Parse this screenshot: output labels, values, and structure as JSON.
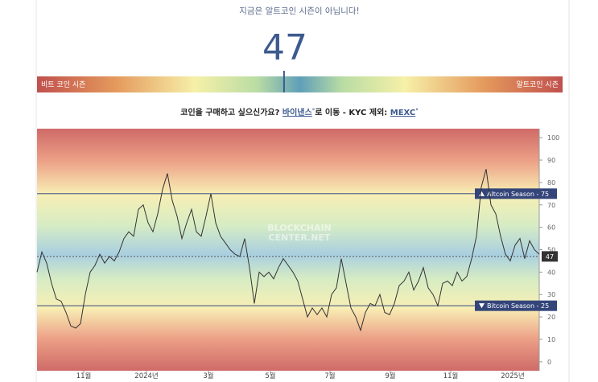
{
  "header": {
    "status": "지금은 알트코인 시즌이 아닙니다!",
    "index_value": 47,
    "bar_left": "비트 코인 시즌",
    "bar_right": "알트코인 시즌",
    "index_min": 0,
    "index_max": 100
  },
  "promo": {
    "text1": "코인을 구매하고 싶으신가요?",
    "link1": "바이낸스",
    "text2": "로 이동 - KYC 제외:",
    "link2": "MEXC",
    "link_mark": "°"
  },
  "chart_data": {
    "type": "line",
    "color": "#333333",
    "values": [
      40,
      49,
      44,
      35,
      28,
      27,
      22,
      16,
      15,
      17,
      30,
      40,
      43,
      48,
      44,
      47,
      45,
      49,
      55,
      58,
      56,
      68,
      70,
      62,
      58,
      66,
      77,
      84,
      72,
      65,
      55,
      62,
      68,
      58,
      56,
      65,
      75,
      62,
      56,
      53,
      50,
      48,
      47,
      55,
      42,
      26,
      40,
      38,
      40,
      37,
      42,
      46,
      43,
      40,
      36,
      28,
      20,
      24,
      21,
      24,
      20,
      30,
      33,
      46,
      35,
      24,
      20,
      14,
      22,
      26,
      25,
      30,
      22,
      21,
      26,
      34,
      36,
      40,
      32,
      36,
      42,
      33,
      30,
      25,
      35,
      36,
      34,
      40,
      36,
      38,
      46,
      56,
      78,
      86,
      70,
      66,
      56,
      48,
      45,
      52,
      55,
      46,
      54,
      50,
      48
    ],
    "xlim": [
      0,
      104
    ],
    "xticks": [
      {
        "value": 9.67,
        "label": "11월"
      },
      {
        "value": 22.67,
        "label": "2024년"
      },
      {
        "value": 35.5,
        "label": "3월"
      },
      {
        "value": 48.33,
        "label": "5월"
      },
      {
        "value": 60.67,
        "label": "7월"
      },
      {
        "value": 73.17,
        "label": "9월"
      },
      {
        "value": 85.67,
        "label": "11월"
      },
      {
        "value": 98.5,
        "label": "2025년"
      }
    ],
    "ylim": [
      -4,
      104
    ],
    "yticks": [
      0,
      10,
      20,
      30,
      40,
      50,
      60,
      70,
      80,
      90,
      100
    ],
    "reference_lines": [
      {
        "value": 75,
        "label": "Altcoin Season - 75"
      },
      {
        "value": 25,
        "label": "Bitcoin Season - 25"
      }
    ],
    "current_line": 47,
    "watermark": [
      "BLOCKCHAIN",
      "CENTER.NET"
    ]
  }
}
